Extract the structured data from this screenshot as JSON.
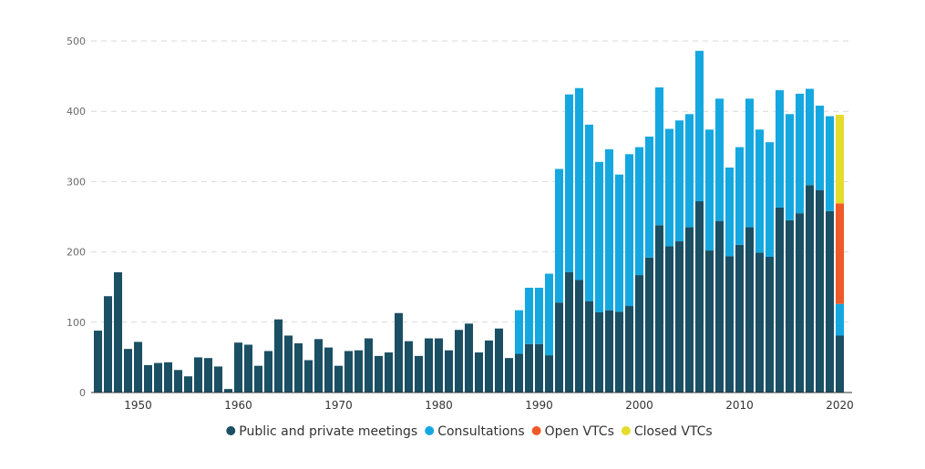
{
  "chart_data": {
    "type": "bar",
    "stacked": true,
    "title": "",
    "xlabel": "",
    "ylabel": "",
    "ylim": [
      0,
      500
    ],
    "yticks": [
      0,
      100,
      200,
      300,
      400,
      500
    ],
    "xticks": [
      1950,
      1960,
      1970,
      1980,
      1990,
      2000,
      2010,
      2020
    ],
    "grid": true,
    "legend_position": "bottom",
    "colors": {
      "Public and private meetings": "#1b4f63",
      "Consultations": "#15a8e0",
      "Open VTCs": "#ef5a28",
      "Closed VTCs": "#e5dc2c"
    },
    "categories": [
      1946,
      1947,
      1948,
      1949,
      1950,
      1951,
      1952,
      1953,
      1954,
      1955,
      1956,
      1957,
      1958,
      1959,
      1960,
      1961,
      1962,
      1963,
      1964,
      1965,
      1966,
      1967,
      1968,
      1969,
      1970,
      1971,
      1972,
      1973,
      1974,
      1975,
      1976,
      1977,
      1978,
      1979,
      1980,
      1981,
      1982,
      1983,
      1984,
      1985,
      1986,
      1987,
      1988,
      1989,
      1990,
      1991,
      1992,
      1993,
      1994,
      1995,
      1996,
      1997,
      1998,
      1999,
      2000,
      2001,
      2002,
      2003,
      2004,
      2005,
      2006,
      2007,
      2008,
      2009,
      2010,
      2011,
      2012,
      2013,
      2014,
      2015,
      2016,
      2017,
      2018,
      2019,
      2020
    ],
    "series": [
      {
        "name": "Public and private meetings",
        "values": [
          88,
          137,
          171,
          62,
          72,
          39,
          42,
          43,
          32,
          23,
          50,
          49,
          37,
          5,
          71,
          68,
          38,
          59,
          104,
          81,
          70,
          46,
          76,
          64,
          38,
          59,
          60,
          77,
          52,
          57,
          113,
          73,
          52,
          77,
          77,
          60,
          89,
          98,
          57,
          74,
          91,
          49,
          55,
          69,
          69,
          53,
          128,
          171,
          160,
          130,
          114,
          117,
          115,
          123,
          167,
          192,
          238,
          208,
          215,
          235,
          272,
          202,
          244,
          194,
          210,
          235,
          199,
          193,
          263,
          245,
          255,
          295,
          288,
          258,
          81
        ]
      },
      {
        "name": "Consultations",
        "values": [
          0,
          0,
          0,
          0,
          0,
          0,
          0,
          0,
          0,
          0,
          0,
          0,
          0,
          0,
          0,
          0,
          0,
          0,
          0,
          0,
          0,
          0,
          0,
          0,
          0,
          0,
          0,
          0,
          0,
          0,
          0,
          0,
          0,
          0,
          0,
          0,
          0,
          0,
          0,
          0,
          0,
          0,
          62,
          80,
          80,
          116,
          190,
          253,
          273,
          251,
          214,
          229,
          195,
          216,
          182,
          172,
          196,
          167,
          172,
          161,
          214,
          172,
          174,
          126,
          139,
          183,
          175,
          163,
          167,
          151,
          170,
          137,
          120,
          135,
          45
        ]
      },
      {
        "name": "Open VTCs",
        "values": [
          0,
          0,
          0,
          0,
          0,
          0,
          0,
          0,
          0,
          0,
          0,
          0,
          0,
          0,
          0,
          0,
          0,
          0,
          0,
          0,
          0,
          0,
          0,
          0,
          0,
          0,
          0,
          0,
          0,
          0,
          0,
          0,
          0,
          0,
          0,
          0,
          0,
          0,
          0,
          0,
          0,
          0,
          0,
          0,
          0,
          0,
          0,
          0,
          0,
          0,
          0,
          0,
          0,
          0,
          0,
          0,
          0,
          0,
          0,
          0,
          0,
          0,
          0,
          0,
          0,
          0,
          0,
          0,
          0,
          0,
          0,
          0,
          0,
          0,
          143
        ]
      },
      {
        "name": "Closed VTCs",
        "values": [
          0,
          0,
          0,
          0,
          0,
          0,
          0,
          0,
          0,
          0,
          0,
          0,
          0,
          0,
          0,
          0,
          0,
          0,
          0,
          0,
          0,
          0,
          0,
          0,
          0,
          0,
          0,
          0,
          0,
          0,
          0,
          0,
          0,
          0,
          0,
          0,
          0,
          0,
          0,
          0,
          0,
          0,
          0,
          0,
          0,
          0,
          0,
          0,
          0,
          0,
          0,
          0,
          0,
          0,
          0,
          0,
          0,
          0,
          0,
          0,
          0,
          0,
          0,
          0,
          0,
          0,
          0,
          0,
          0,
          0,
          0,
          0,
          0,
          0,
          126
        ]
      }
    ]
  }
}
